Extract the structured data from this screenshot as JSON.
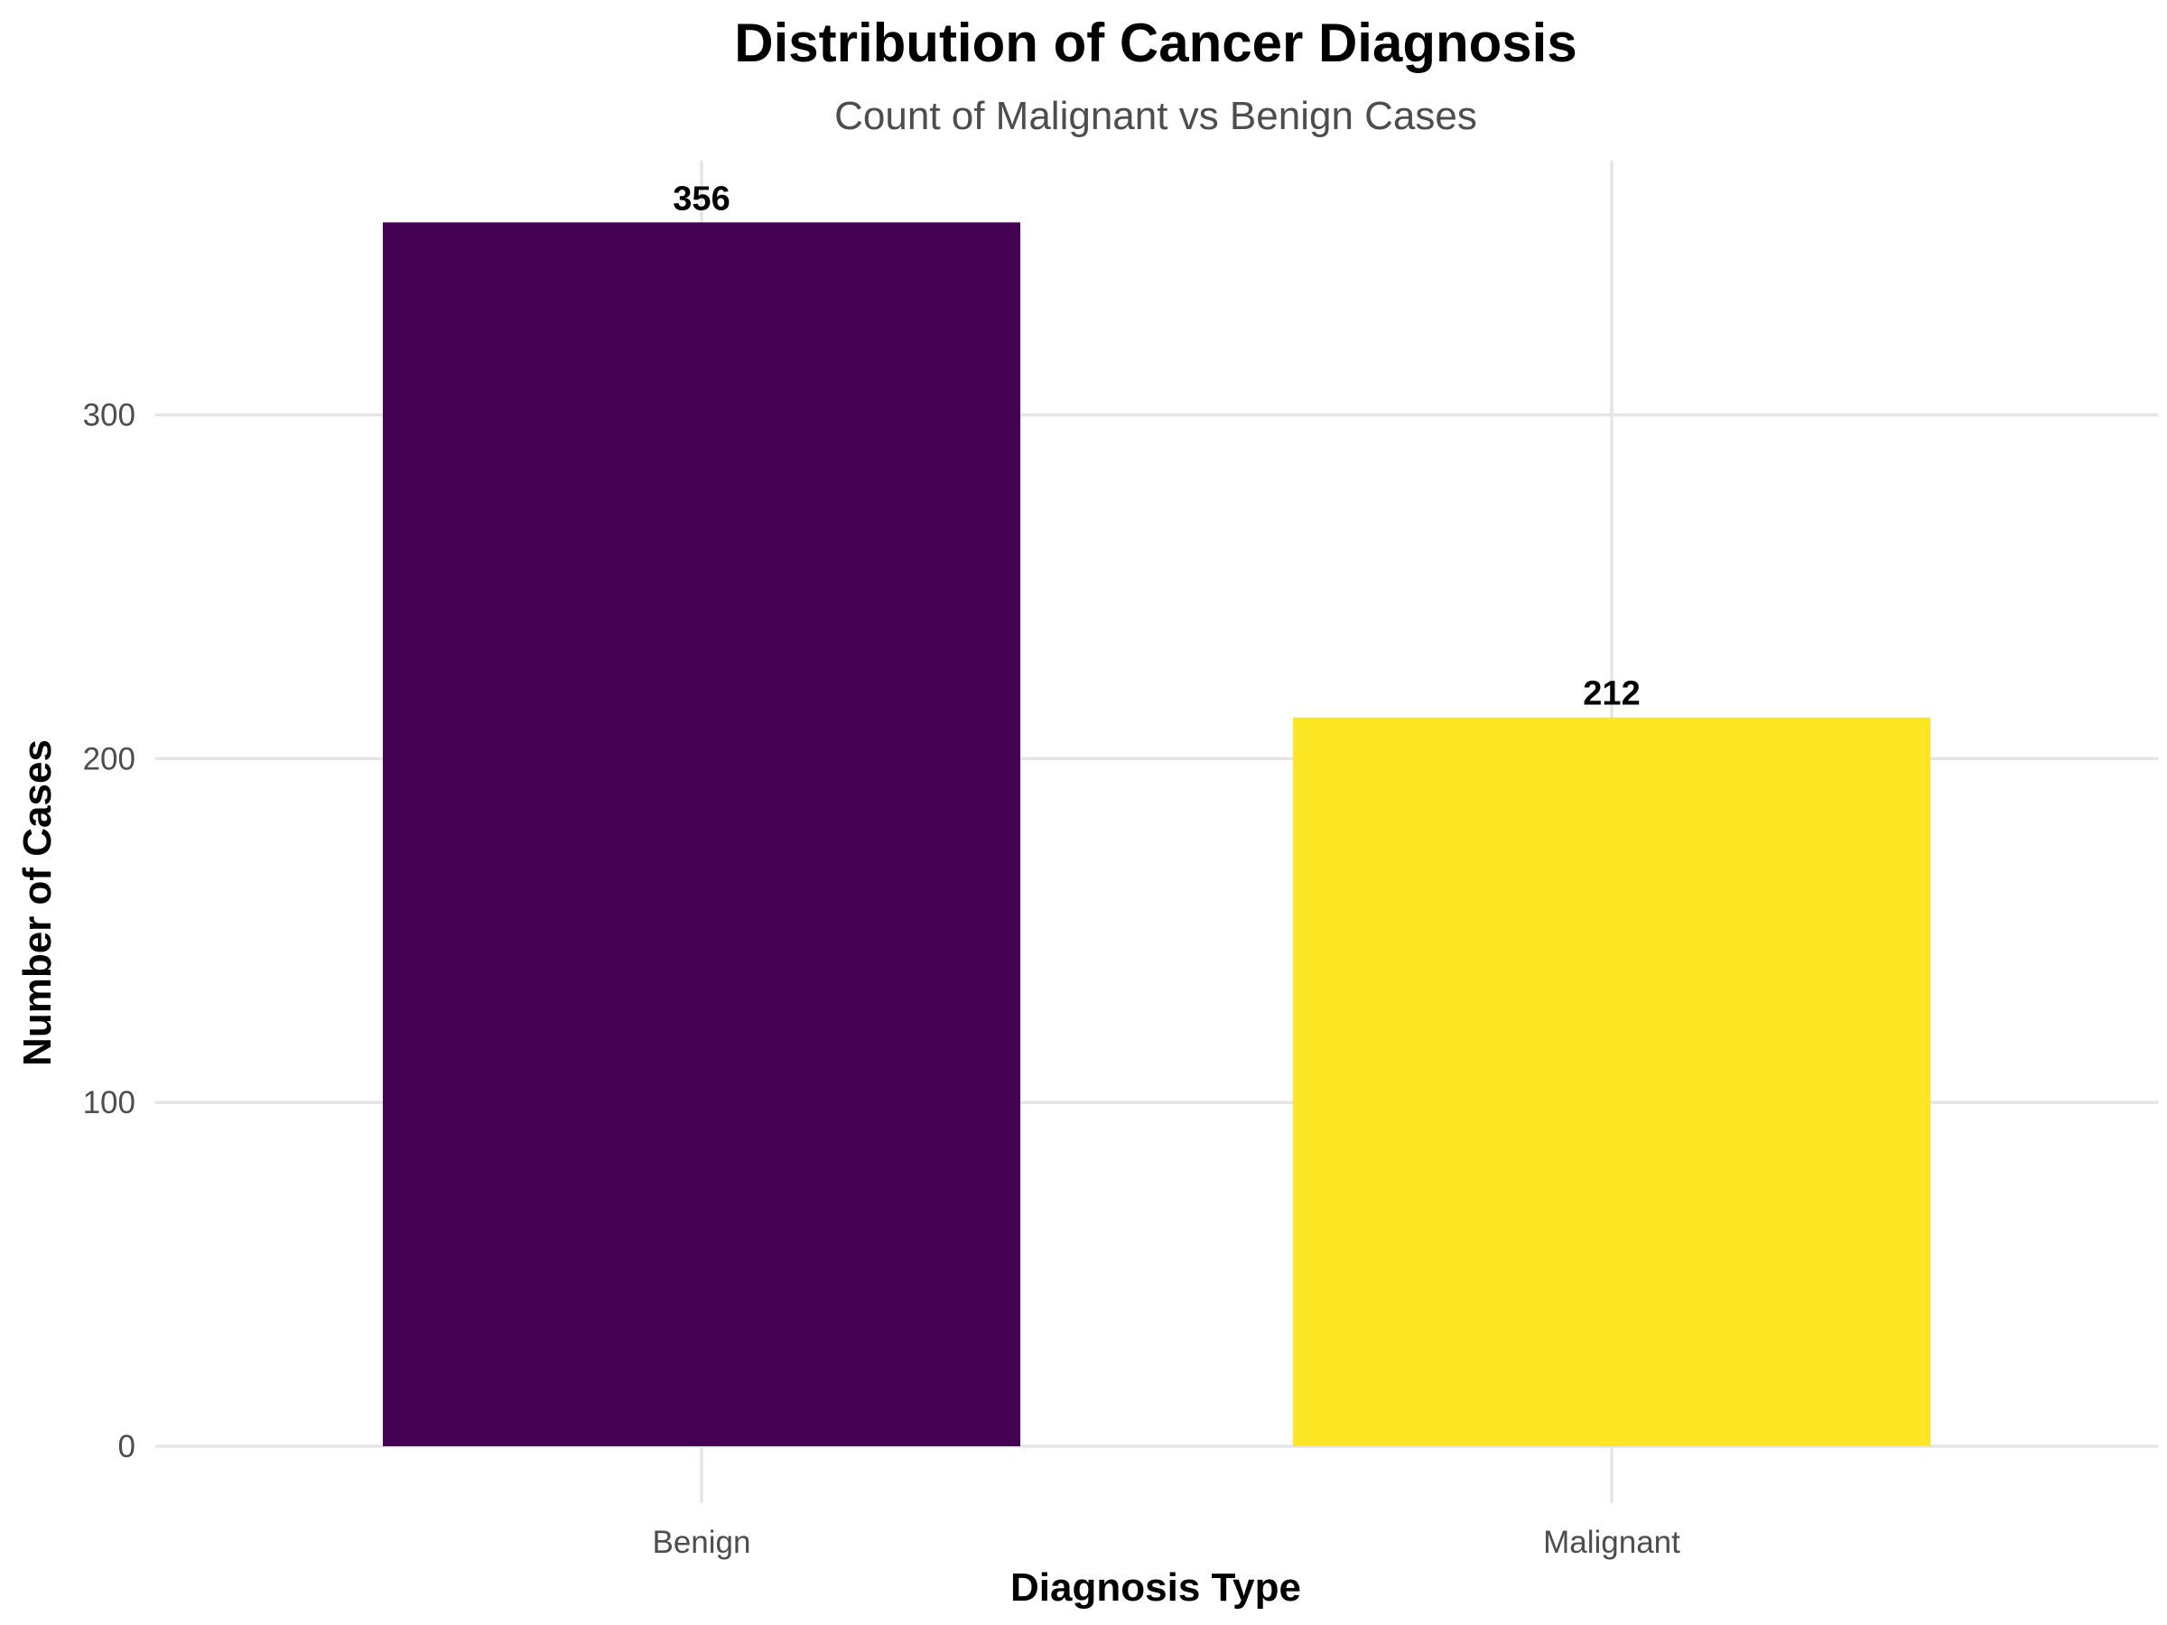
{
  "chart_data": {
    "type": "bar",
    "title": "Distribution of Cancer Diagnosis",
    "subtitle": "Count of Malignant vs Benign Cases",
    "xlabel": "Diagnosis Type",
    "ylabel": "Number of Cases",
    "categories": [
      "Benign",
      "Malignant"
    ],
    "values": [
      356,
      212
    ],
    "data_labels": [
      "356",
      "212"
    ],
    "colors": [
      "#440154",
      "#FDE725"
    ],
    "ylim": [
      0,
      365
    ],
    "yticks": [
      0,
      100,
      200,
      300
    ],
    "ytick_labels": [
      "0",
      "100",
      "200",
      "300"
    ],
    "grid": true,
    "legend": "none"
  }
}
